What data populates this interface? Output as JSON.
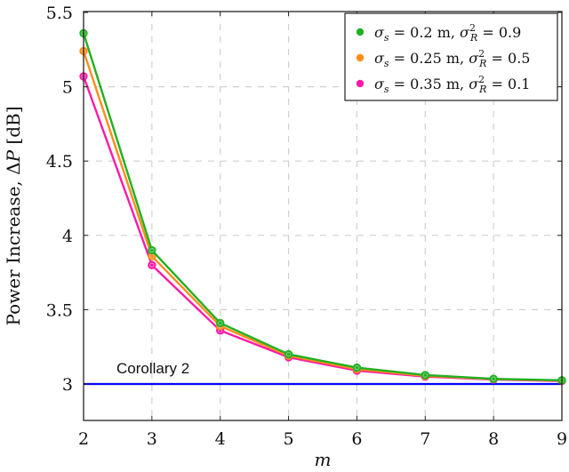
{
  "chart_data": {
    "type": "line",
    "title": "",
    "xlabel": "m",
    "ylabel": "Power Increase, ΔP [dB]",
    "x": [
      2,
      3,
      4,
      5,
      6,
      7,
      8,
      9
    ],
    "xlim": [
      2,
      9
    ],
    "ylim": [
      2.75,
      5.5
    ],
    "xticks": [
      "2",
      "3",
      "4",
      "5",
      "6",
      "7",
      "8",
      "9"
    ],
    "yticks": [
      "3",
      "3.5",
      "4",
      "4.5",
      "5",
      "5.5"
    ],
    "grid": true,
    "legend_position": "upper right",
    "series": [
      {
        "name": "σ_s = 0.2 m, σ_R^2 = 0.9",
        "color": "#22b022",
        "values": [
          5.36,
          3.9,
          3.41,
          3.2,
          3.11,
          3.06,
          3.035,
          3.025
        ]
      },
      {
        "name": "σ_s = 0.25 m, σ_R^2 = 0.5",
        "color": "#ff8c1a",
        "values": [
          5.24,
          3.86,
          3.39,
          3.19,
          3.1,
          3.055,
          3.033,
          3.023
        ]
      },
      {
        "name": "σ_s = 0.35 m, σ_R^2 = 0.1",
        "color": "#ff1aa8",
        "values": [
          5.07,
          3.8,
          3.36,
          3.18,
          3.09,
          3.05,
          3.03,
          3.02
        ]
      }
    ],
    "reference_line": {
      "label": "Corollary 2",
      "y": 3.0,
      "color": "#0000ff"
    },
    "annotations": [
      "Corollary 2"
    ]
  },
  "labels": {
    "xlabel": "m",
    "ylabel": "Power Increase, ΔP [dB]",
    "annotation": "Corollary 2",
    "legend": [
      {
        "sigma_s": "0.2",
        "sigma_r2": "0.9"
      },
      {
        "sigma_s": "0.25",
        "sigma_r2": "0.5"
      },
      {
        "sigma_s": "0.35",
        "sigma_r2": "0.1"
      }
    ]
  }
}
